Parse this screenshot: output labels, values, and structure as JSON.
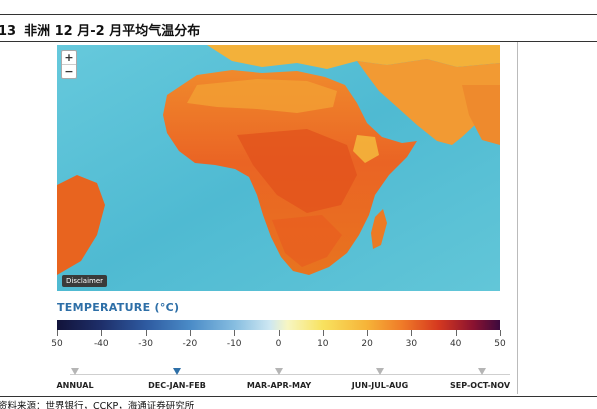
{
  "figure": {
    "number": "13",
    "title": "非洲 12 月-2 月平均气温分布"
  },
  "map": {
    "zoom_in_label": "+",
    "zoom_out_label": "−",
    "disclaimer_label": "Disclaimer",
    "colors": {
      "ocean": "#53bfd6",
      "hot": "#e8561f",
      "warm": "#f29a33",
      "mild": "#f6c441"
    }
  },
  "legend": {
    "title": "TEMPERATURE (°C)",
    "tick_labels": [
      "50",
      "-40",
      "-30",
      "-20",
      "-10",
      "0",
      "10",
      "20",
      "30",
      "40",
      "50"
    ]
  },
  "seasons": {
    "items": [
      {
        "label": "ANNUAL",
        "active": false
      },
      {
        "label": "DEC-JAN-FEB",
        "active": true
      },
      {
        "label": "MAR-APR-MAY",
        "active": false
      },
      {
        "label": "JUN-JUL-AUG",
        "active": false
      },
      {
        "label": "SEP-OCT-NOV",
        "active": false
      }
    ]
  },
  "source": "资料来源：世界银行，CCKP，海通证券研究所"
}
